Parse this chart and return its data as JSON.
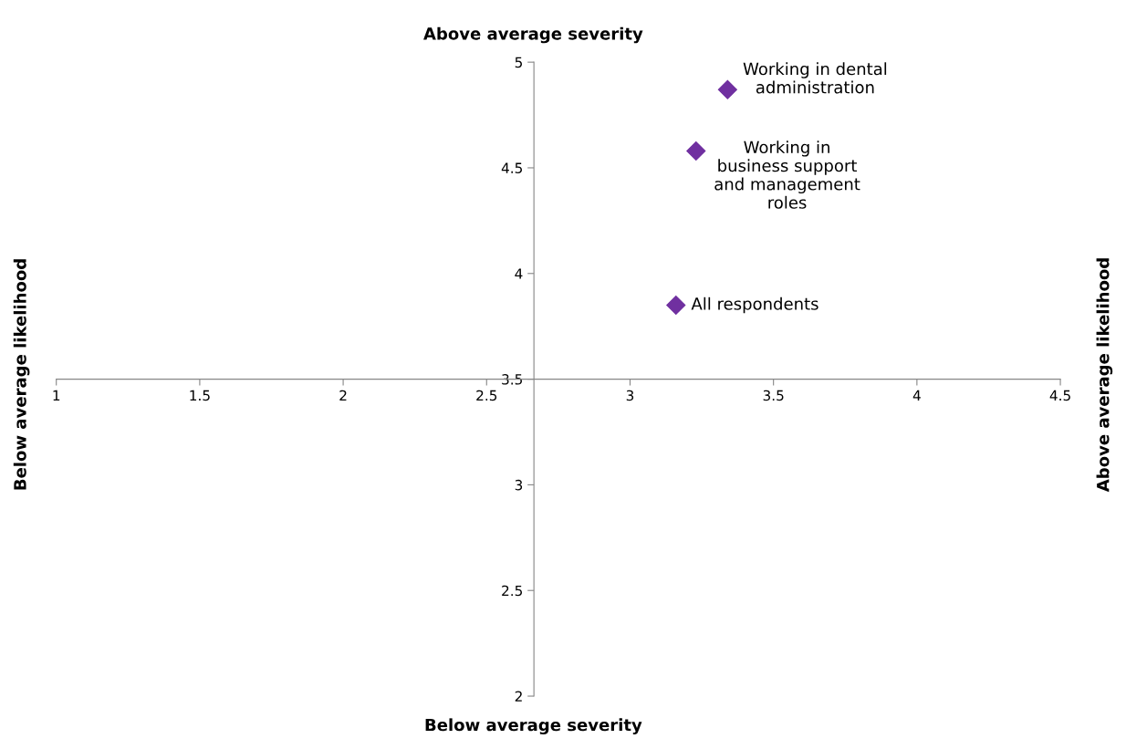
{
  "chart_data": {
    "type": "scatter",
    "series": [
      {
        "color": "#7030a0",
        "x": [
          3.34,
          3.23,
          3.16
        ],
        "values": [
          4.87,
          4.58,
          3.85
        ]
      }
    ],
    "marker": "diamond",
    "grid": false,
    "legend": false,
    "xlim": [
      1,
      4.5
    ],
    "xticks": [
      1,
      1.5,
      2,
      2.5,
      3,
      3.5,
      4,
      4.5
    ],
    "ylim": [
      2,
      5
    ],
    "yticks": [
      2,
      2.5,
      3,
      3.5,
      4,
      4.5,
      5
    ],
    "xlabel": "Below average severity",
    "x2label": "Above average severity",
    "ylabel": "Below average likelihood",
    "y2label": "Above average likelihood",
    "annotations": [
      {
        "text": "Working in dental\nadministration",
        "x": 3.34,
        "y": 4.87
      },
      {
        "text": "Working in\nbusiness support\nand management\nroles",
        "x": 3.23,
        "y": 4.58
      },
      {
        "text": "All respondents",
        "x": 3.16,
        "y": 3.85
      }
    ]
  }
}
